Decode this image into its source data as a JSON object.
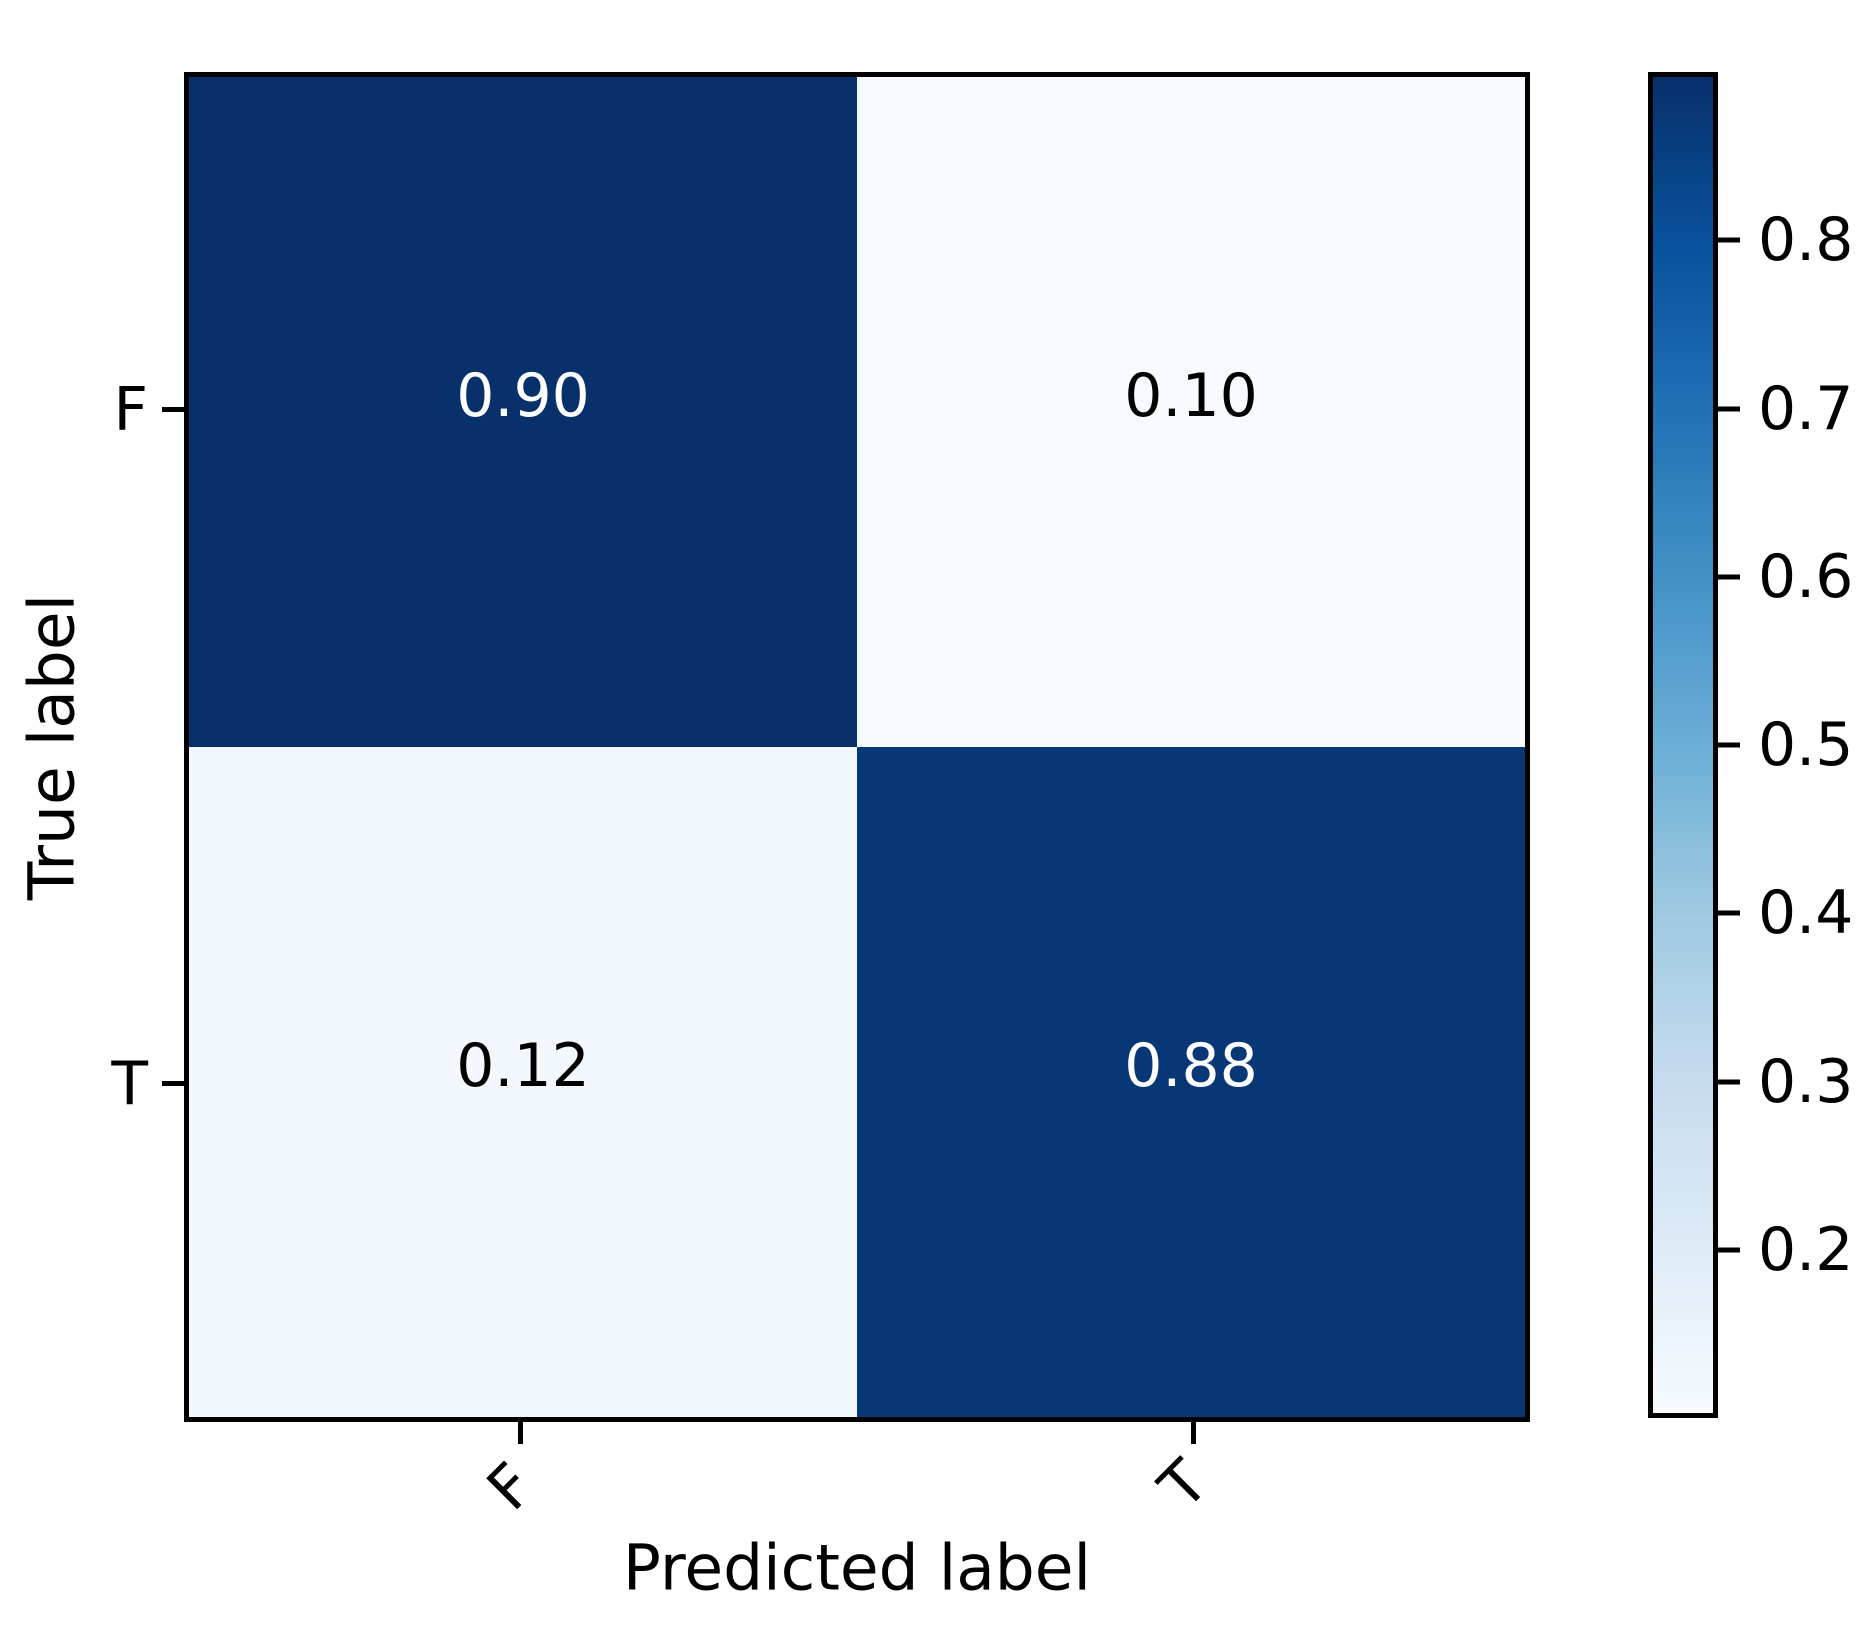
{
  "chart_data": {
    "type": "heatmap",
    "subtype": "confusion-matrix",
    "title": "",
    "xlabel": "Predicted label",
    "ylabel": "True label",
    "x_categories": [
      "F",
      "T"
    ],
    "y_categories": [
      "F",
      "T"
    ],
    "matrix_rows_top_to_bottom": [
      [
        0.9,
        0.1
      ],
      [
        0.12,
        0.88
      ]
    ],
    "cells": [
      {
        "true_label": "F",
        "predicted_label": "F",
        "value": 0.9,
        "label": "0.90",
        "bg": "#08306b",
        "fg": "#ffffff"
      },
      {
        "true_label": "F",
        "predicted_label": "T",
        "value": 0.1,
        "label": "0.10",
        "bg": "#f7fbff",
        "fg": "#000000"
      },
      {
        "true_label": "T",
        "predicted_label": "F",
        "value": 0.12,
        "label": "0.12",
        "bg": "#f2f8fd",
        "fg": "#000000"
      },
      {
        "true_label": "T",
        "predicted_label": "T",
        "value": 0.88,
        "label": "0.88",
        "bg": "#083775",
        "fg": "#ffffff"
      }
    ],
    "colormap": "Blues",
    "vmin": 0.1,
    "vmax": 0.9,
    "grid": false,
    "legend": false,
    "colorbar": {
      "position": "right",
      "ticks": [
        {
          "label": "0.8",
          "value": 0.8
        },
        {
          "label": "0.7",
          "value": 0.7
        },
        {
          "label": "0.6",
          "value": 0.6
        },
        {
          "label": "0.5",
          "value": 0.5
        },
        {
          "label": "0.4",
          "value": 0.4
        },
        {
          "label": "0.3",
          "value": 0.3
        },
        {
          "label": "0.2",
          "value": 0.2
        }
      ],
      "gradient_top_to_bottom": [
        "#08306b",
        "#08519c",
        "#2171b5",
        "#4292c6",
        "#6baed6",
        "#9ecae1",
        "#c6dbef",
        "#deebf7",
        "#f7fbff"
      ]
    },
    "axis_colors": {
      "spine": "#000000",
      "tick": "#000000",
      "text": "#000000"
    }
  }
}
